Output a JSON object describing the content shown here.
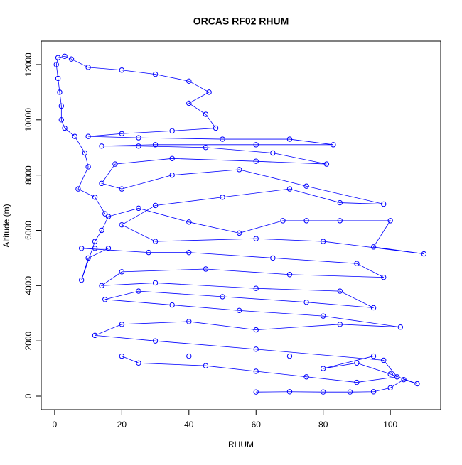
{
  "chart_data": {
    "type": "line",
    "title": "ORCAS RF02 RHUM",
    "x_label": "RHUM",
    "y_label": "Altitude (m)",
    "color": "#0000ff",
    "marker": "open-circle",
    "xlim": [
      -4,
      115
    ],
    "ylim": [
      -488,
      12847
    ],
    "xticks": [
      0,
      20,
      40,
      60,
      80,
      100
    ],
    "yticks": [
      0,
      2000,
      4000,
      6000,
      8000,
      10000,
      12000
    ],
    "x": [
      60,
      70,
      80,
      88,
      95,
      100,
      104,
      108,
      100,
      90,
      80,
      95,
      70,
      40,
      20,
      25,
      45,
      60,
      75,
      90,
      102,
      98,
      60,
      30,
      12,
      20,
      40,
      60,
      85,
      103,
      80,
      55,
      35,
      15,
      25,
      50,
      75,
      95,
      85,
      60,
      30,
      14,
      20,
      45,
      70,
      98,
      90,
      65,
      40,
      28,
      8,
      12,
      16,
      10,
      8,
      12,
      14,
      16,
      25,
      40,
      55,
      68,
      75,
      85,
      100,
      95,
      110,
      80,
      60,
      30,
      20,
      30,
      50,
      70,
      85,
      98,
      75,
      55,
      35,
      20,
      14,
      18,
      35,
      60,
      81,
      65,
      45,
      25,
      14,
      30,
      60,
      83,
      70,
      50,
      25,
      10,
      20,
      35,
      48,
      45,
      40,
      46,
      40,
      30,
      20,
      10,
      5,
      3,
      1,
      0.5,
      1,
      1.5,
      2,
      2,
      3,
      6,
      9,
      10,
      7,
      12,
      15
    ],
    "values": [
      150,
      160,
      150,
      150,
      160,
      300,
      600,
      450,
      800,
      1200,
      1000,
      1450,
      1450,
      1450,
      1450,
      1200,
      1100,
      900,
      700,
      500,
      700,
      1300,
      1700,
      2000,
      2200,
      2600,
      2700,
      2400,
      2600,
      2500,
      2900,
      3100,
      3300,
      3500,
      3800,
      3600,
      3400,
      3200,
      3800,
      3900,
      4100,
      4000,
      4500,
      4600,
      4400,
      4300,
      4800,
      5000,
      5200,
      5200,
      5350,
      5350,
      5350,
      5000,
      4200,
      5600,
      6000,
      6500,
      6800,
      6300,
      5900,
      6350,
      6350,
      6350,
      6350,
      5400,
      5150,
      5600,
      5700,
      5600,
      6200,
      6900,
      7200,
      7500,
      7000,
      6950,
      7600,
      8200,
      8000,
      7500,
      7700,
      8400,
      8600,
      8500,
      8400,
      8800,
      9000,
      9050,
      9050,
      9100,
      9100,
      9100,
      9300,
      9300,
      9350,
      9400,
      9500,
      9600,
      9700,
      10200,
      10600,
      11000,
      11400,
      11650,
      11800,
      11900,
      12200,
      12300,
      12250,
      12000,
      11500,
      11000,
      10500,
      10000,
      9700,
      9400,
      8800,
      8300,
      7500,
      7200,
      6600
    ]
  }
}
